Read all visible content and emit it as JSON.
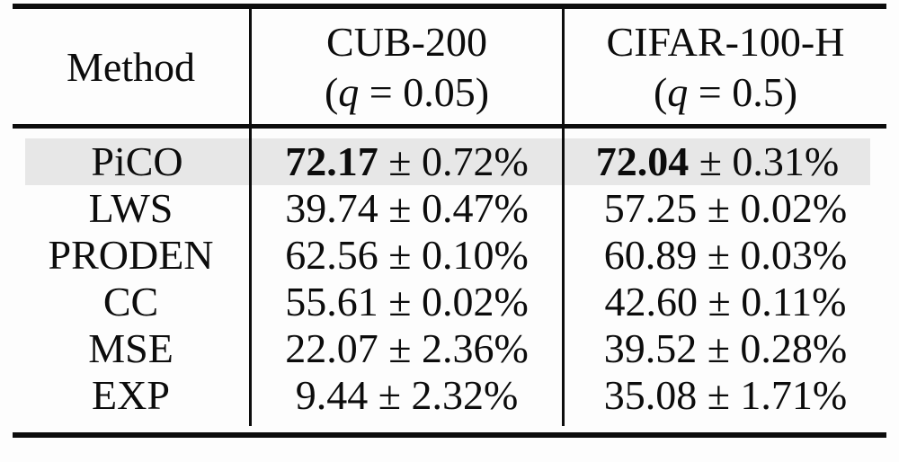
{
  "colors": {
    "background": "#fdfdfd",
    "text": "#0c0c0c",
    "rule": "#0d0d0d",
    "highlight_row": "#e7e7e7"
  },
  "table": {
    "header": {
      "method_label": "Method",
      "cub": {
        "label": "CUB-200",
        "sub_prefix": "(",
        "sub_var": "q",
        "sub_suffix": " = 0.05)"
      },
      "cifar": {
        "label": "CIFAR-100-H",
        "sub_prefix": "(",
        "sub_var": "q",
        "sub_suffix": " = 0.5)"
      }
    },
    "rows": [
      {
        "method": "PiCO",
        "cub_mean": "72.17",
        "cub_err": "± 0.72%",
        "cifar_mean": "72.04",
        "cifar_err": "± 0.31%"
      },
      {
        "method": "LWS",
        "cub_mean": "39.74",
        "cub_err": "± 0.47%",
        "cifar_mean": "57.25",
        "cifar_err": "± 0.02%"
      },
      {
        "method": "PRODEN",
        "cub_mean": "62.56",
        "cub_err": "± 0.10%",
        "cifar_mean": "60.89",
        "cifar_err": "± 0.03%"
      },
      {
        "method": "CC",
        "cub_mean": "55.61",
        "cub_err": "± 0.02%",
        "cifar_mean": "42.60",
        "cifar_err": "± 0.11%"
      },
      {
        "method": "MSE",
        "cub_mean": "22.07",
        "cub_err": "± 2.36%",
        "cifar_mean": "39.52",
        "cifar_err": "± 0.28%"
      },
      {
        "method": "EXP",
        "cub_mean": "9.44",
        "cub_err": "± 2.32%",
        "cifar_mean": "35.08",
        "cifar_err": "± 1.71%"
      }
    ]
  },
  "chart_data": {
    "type": "table",
    "title": "",
    "columns": [
      "Method",
      "CUB-200 (q = 0.05)",
      "CIFAR-100-H (q = 0.5)"
    ],
    "series": [
      {
        "name": "CUB-200 (q = 0.05)",
        "values": [
          72.17,
          39.74,
          62.56,
          55.61,
          22.07,
          9.44
        ],
        "errors": [
          0.72,
          0.47,
          0.1,
          0.02,
          2.36,
          2.32
        ]
      },
      {
        "name": "CIFAR-100-H (q = 0.5)",
        "values": [
          72.04,
          57.25,
          60.89,
          42.6,
          39.52,
          35.08
        ],
        "errors": [
          0.31,
          0.02,
          0.03,
          0.11,
          0.28,
          1.71
        ]
      }
    ],
    "categories": [
      "PiCO",
      "LWS",
      "PRODEN",
      "CC",
      "MSE",
      "EXP"
    ],
    "highlighted_row": "PiCO",
    "unit": "%"
  }
}
